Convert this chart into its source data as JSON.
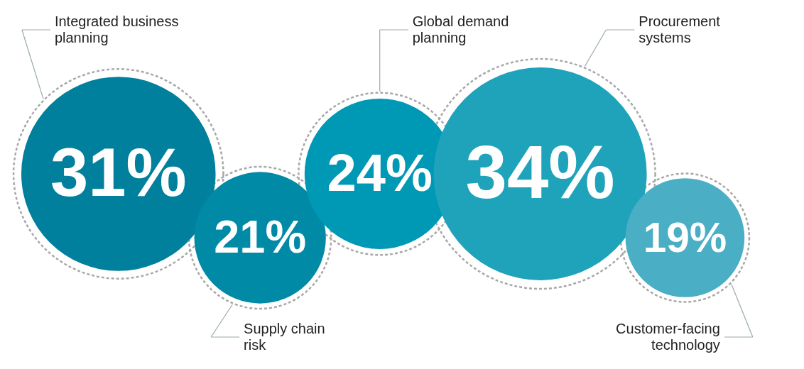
{
  "chart_data": {
    "type": "other",
    "categories": [
      "Integrated business planning",
      "Supply chain risk",
      "Global demand planning",
      "Procurement systems",
      "Customer-facing technology"
    ],
    "values": [
      31,
      21,
      24,
      34,
      19
    ],
    "value_labels": [
      "31%",
      "21%",
      "24%",
      "34%",
      "19%"
    ],
    "colors": [
      "#00809c",
      "#008aa6",
      "#0099b5",
      "#1fa3bb",
      "#4aaec4"
    ]
  }
}
